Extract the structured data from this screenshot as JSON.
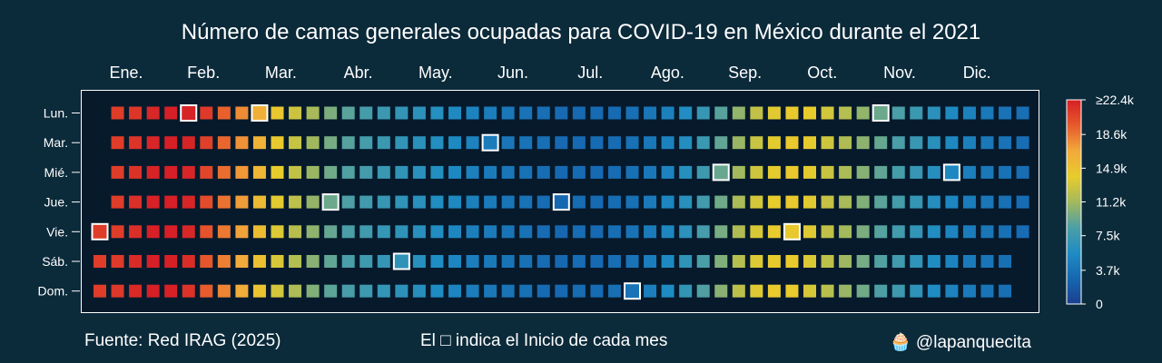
{
  "title": "Número de camas generales ocupadas para COVID-19 en México durante el 2021",
  "footer": {
    "source": "Fuente: Red IRAG (2025)",
    "note": "El □ indica el Inicio de cada mes",
    "handle": "🧁 @lapanquecita"
  },
  "chart_data": {
    "type": "heatmap",
    "title": "Número de camas generales ocupadas para COVID-19 en México durante el 2021",
    "year": 2021,
    "first_day_of_year": "Vie.",
    "months": [
      "Ene.",
      "Feb.",
      "Mar.",
      "Abr.",
      "May.",
      "Jun.",
      "Jul.",
      "Ago.",
      "Sep.",
      "Oct.",
      "Nov.",
      "Dic."
    ],
    "weekdays": [
      "Lun.",
      "Mar.",
      "Mié.",
      "Jue.",
      "Vie.",
      "Sáb.",
      "Dom."
    ],
    "month_start_markers": true,
    "colorbar": {
      "min": 0,
      "max": 22400,
      "ticks": [
        0,
        3700,
        7500,
        11200,
        14900,
        18600,
        22400
      ],
      "tick_labels": [
        "0",
        "3.7k",
        "7.5k",
        "11.2k",
        "14.9k",
        "18.6k",
        "≥22.4k"
      ],
      "colorscale": [
        "#1a3f8e",
        "#1667b0",
        "#1f8cc3",
        "#4c9fa6",
        "#a4b95c",
        "#e8cc2c",
        "#f2a93b",
        "#e75a2c",
        "#d61f26"
      ]
    },
    "weekly_values": [
      21000,
      21000,
      21700,
      22400,
      22400,
      22000,
      20000,
      18500,
      17000,
      15200,
      13500,
      12000,
      10500,
      9200,
      8300,
      7700,
      7000,
      6600,
      6200,
      5700,
      5200,
      4600,
      4200,
      3800,
      3600,
      3200,
      2800,
      3200,
      3000,
      3300,
      3600,
      4300,
      5200,
      6400,
      8000,
      9800,
      11700,
      13400,
      14100,
      14300,
      13600,
      12400,
      11200,
      9900,
      8700,
      7800,
      6800,
      5800,
      5000,
      4400,
      3900,
      3500,
      3200,
      3000
    ],
    "xlabel": "",
    "ylabel": ""
  }
}
